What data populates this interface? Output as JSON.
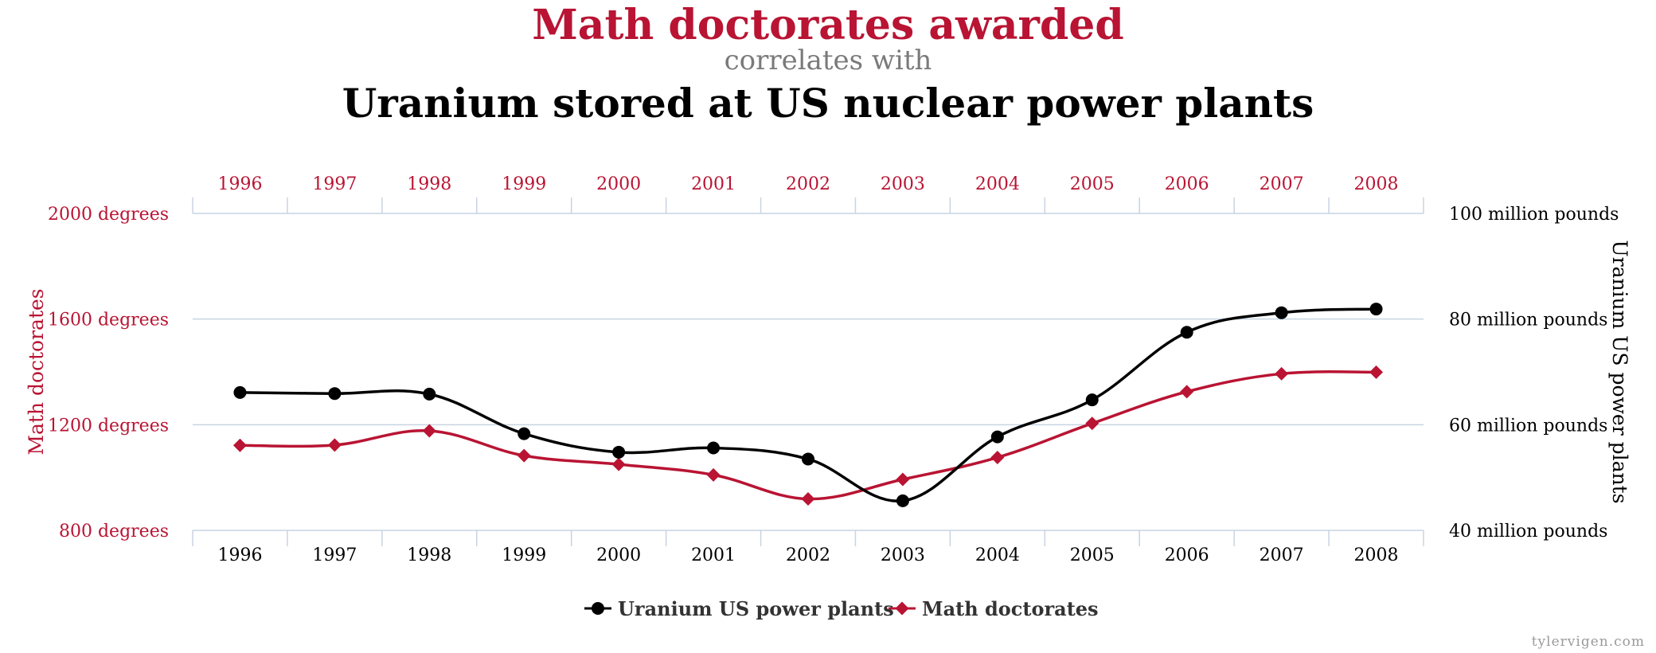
{
  "chart_data": {
    "type": "line",
    "title": "Math doctorates awarded",
    "subtitle": "correlates with",
    "title2": "Uranium stored at US nuclear power plants",
    "x": [
      "1996",
      "1997",
      "1998",
      "1999",
      "2000",
      "2001",
      "2002",
      "2003",
      "2004",
      "2005",
      "2006",
      "2007",
      "2008"
    ],
    "y_left": {
      "label": "Math doctorates",
      "range": [
        800,
        2000
      ],
      "ticks": [
        "800 degrees",
        "1200 degrees",
        "1600 degrees",
        "2000 degrees"
      ],
      "tick_values": [
        800,
        1200,
        1600,
        2000
      ]
    },
    "y_right": {
      "label": "Uranium US power plants",
      "range": [
        40,
        100
      ],
      "ticks": [
        "40 million pounds",
        "60 million pounds",
        "80 million pounds",
        "100 million pounds"
      ],
      "tick_values": [
        40,
        60,
        80,
        100
      ]
    },
    "series": [
      {
        "name": "Uranium US power plants",
        "axis": "right",
        "color": "#000000",
        "marker": "circle",
        "values": [
          66.1,
          65.9,
          65.8,
          58.3,
          54.8,
          55.6,
          53.5,
          45.6,
          57.7,
          64.7,
          77.5,
          81.2,
          81.9
        ]
      },
      {
        "name": "Math doctorates",
        "axis": "left",
        "color": "#b91433",
        "marker": "diamond",
        "values": [
          1122,
          1123,
          1177,
          1083,
          1050,
          1010,
          919,
          993,
          1076,
          1205,
          1325,
          1393,
          1399
        ]
      }
    ],
    "grid": true,
    "legend": "bottom"
  },
  "credit": "tylervigen.com"
}
